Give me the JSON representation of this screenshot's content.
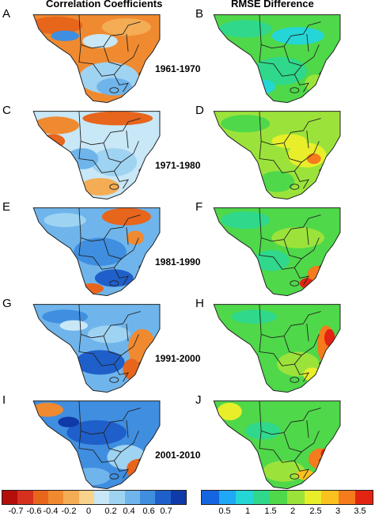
{
  "chart_data": {
    "type": "heatmap",
    "column_titles": [
      "Correlation Coefficients",
      "RMSE Difference"
    ],
    "rows": [
      {
        "period": "1961-1970",
        "panels": [
          "A",
          "B"
        ]
      },
      {
        "period": "1971-1980",
        "panels": [
          "C",
          "D"
        ]
      },
      {
        "period": "1981-1990",
        "panels": [
          "E",
          "F"
        ]
      },
      {
        "period": "1991-2000",
        "panels": [
          "G",
          "H"
        ]
      },
      {
        "period": "2001-2010",
        "panels": [
          "I",
          "J"
        ]
      }
    ],
    "dominant_fields": {
      "A": "negative correlation (-0.4 to -0.2) over the north, positive (0.2 to 0.6) over the south",
      "C": "mixed; positive over the center and south, negative in the north and west",
      "E": "mostly positive (0.2 to 0.6) with negative patches in the northeast",
      "G": "mostly positive (0.4 to 0.6), negative along the east coast",
      "I": "mostly positive (0.4 to 0.7), negative in the northwest and southeast",
      "B": "RMSE difference 1 to 2 over most of the domain",
      "D": "RMSE difference 2 to 3, highest (3) in the southeast",
      "F": "RMSE difference 1.5 to 2.5, highest (3) in the southeast",
      "H": "RMSE difference 1.5 to 2.5, highest (3 to 3.5) on the east coast",
      "J": "RMSE difference 1.5 to 2.5, highest (3 to 3.5) in the southeast"
    },
    "correlation_scale": {
      "ticks": [
        "-0.7",
        "-0.6",
        "-0.4",
        "-0.2",
        "0",
        "0.2",
        "0.4",
        "0.6",
        "0.7"
      ],
      "colors": [
        "#b40f0a",
        "#d7301f",
        "#e8651c",
        "#f08a30",
        "#f4ad55",
        "#f9d28c",
        "#c8e7f7",
        "#9fd3f2",
        "#6fb5ec",
        "#3f8ee0",
        "#1f5fca",
        "#0f3aa8"
      ]
    },
    "rmse_scale": {
      "ticks": [
        "0.5",
        "1",
        "1.5",
        "2",
        "2.5",
        "3",
        "3.5"
      ],
      "colors": [
        "#1565e0",
        "#1fa8f5",
        "#25d6d6",
        "#2fd88a",
        "#4fd84a",
        "#9be33a",
        "#e8ee2a",
        "#fbc11e",
        "#f57b1c",
        "#e32412"
      ]
    }
  }
}
